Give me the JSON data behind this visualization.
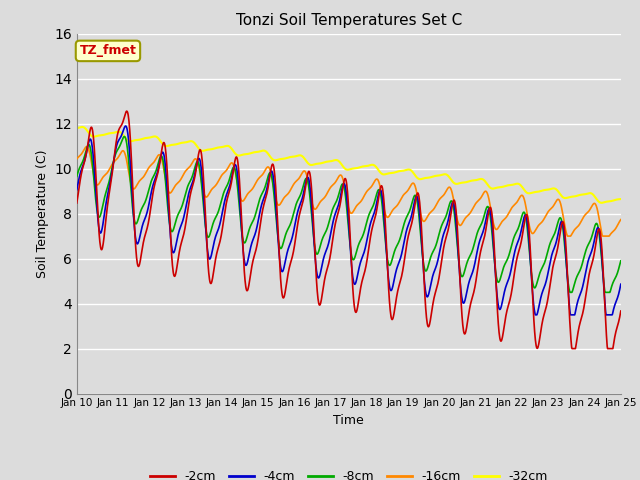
{
  "title": "Tonzi Soil Temperatures Set C",
  "xlabel": "Time",
  "ylabel": "Soil Temperature (C)",
  "fig_facecolor": "#dcdcdc",
  "plot_bg_color": "#dcdcdc",
  "ylim": [
    0,
    16
  ],
  "yticks": [
    0,
    2,
    4,
    6,
    8,
    10,
    12,
    14,
    16
  ],
  "series": [
    {
      "label": "-2cm",
      "color": "#cc0000",
      "lw": 1.2
    },
    {
      "label": "-4cm",
      "color": "#0000cc",
      "lw": 1.2
    },
    {
      "label": "-8cm",
      "color": "#00aa00",
      "lw": 1.2
    },
    {
      "label": "-16cm",
      "color": "#ff8800",
      "lw": 1.2
    },
    {
      "label": "-32cm",
      "color": "#ffff00",
      "lw": 1.5
    }
  ],
  "annotation_text": "TZ_fmet",
  "annotation_color": "#cc0000",
  "annotation_bg": "#ffffcc",
  "annotation_border": "#999900",
  "xtick_labels": [
    "Jan 10",
    "Jan 11",
    "Jan 12",
    "Jan 13",
    "Jan 14",
    "Jan 15",
    "Jan 16",
    "Jan 17",
    "Jan 18",
    "Jan 19",
    "Jan 20",
    "Jan 21",
    "Jan 22",
    "Jan 23",
    "Jan 24",
    "Jan 25"
  ],
  "grid_color": "#ffffff",
  "figsize": [
    6.4,
    4.8
  ],
  "dpi": 100
}
